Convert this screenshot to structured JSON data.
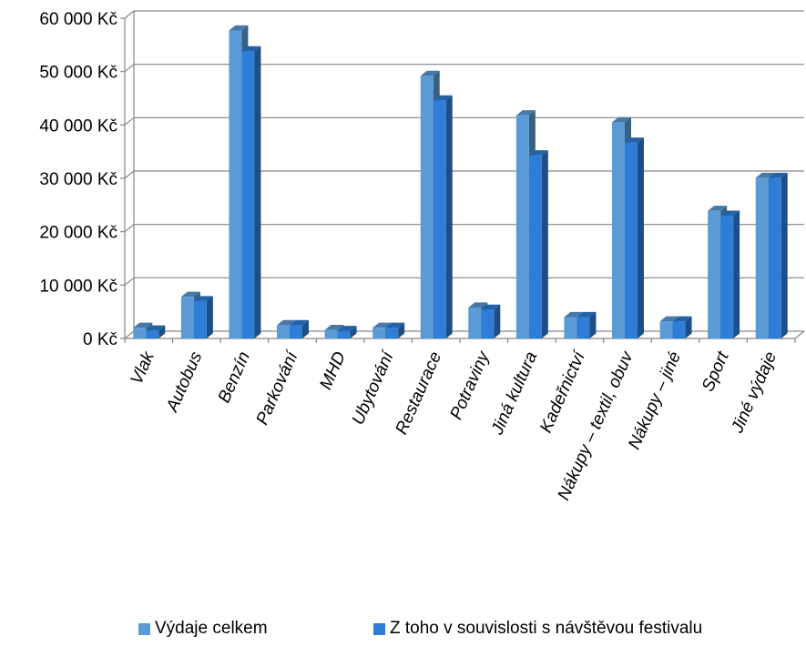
{
  "chart_data": {
    "type": "bar",
    "title": "",
    "xlabel": "",
    "ylabel": "",
    "ylim": [
      0,
      60000
    ],
    "yticks": [
      0,
      10000,
      20000,
      30000,
      40000,
      50000,
      60000
    ],
    "ytick_labels": [
      "0 Kč",
      "10 000 Kč",
      "20 000 Kč",
      "30 000 Kč",
      "40 000 Kč",
      "50 000 Kč",
      "60 000 Kč"
    ],
    "grid": true,
    "legend_position": "bottom",
    "categories": [
      "Vlak",
      "Autobus",
      "Benzín",
      "Parkování",
      "MHD",
      "Ubytování",
      "Restaurace",
      "Potraviny",
      "Jiná kultura",
      "Kadeřnictví",
      "Nákupy – textil, obuv",
      "Nákupy – jiné",
      "Sport",
      "Jiné výdaje"
    ],
    "series": [
      {
        "name": "Výdaje celkem",
        "color": "#5b9bd5",
        "values": [
          2000,
          7800,
          57700,
          2500,
          1600,
          2000,
          49200,
          5800,
          41800,
          4000,
          40500,
          3200,
          23900,
          30100
        ]
      },
      {
        "name": "Z toho v souvislosti s návštěvou festivalu",
        "color": "#2e7dd6",
        "values": [
          1500,
          7000,
          53800,
          2500,
          1400,
          2000,
          44600,
          5400,
          34300,
          4000,
          36700,
          3200,
          23000,
          30100
        ]
      }
    ]
  }
}
